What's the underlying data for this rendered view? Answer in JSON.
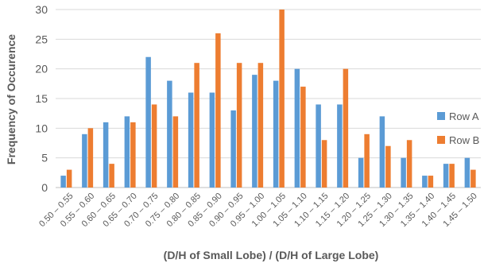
{
  "chart_data": {
    "type": "bar",
    "xlabel": "(D/H of Small Lobe) / (D/H of Large Lobe)",
    "ylabel": "Frequency of Occurence",
    "ylim": [
      0,
      30
    ],
    "yticks": [
      0,
      5,
      10,
      15,
      20,
      25,
      30
    ],
    "grid": true,
    "legend_position": "right",
    "categories": [
      "0.50 – 0.55",
      "0.55 – 0.60",
      "0.60 – 0.65",
      "0.65 – 0.70",
      "0.70 – 0.75",
      "0.75 – 0.80",
      "0.80 – 0.85",
      "0.85 – 0.90",
      "0.90 – 0.95",
      "0.95 – 1.00",
      "1.00 – 1.05",
      "1.05 – 1.10",
      "1.10 – 1.15",
      "1.15 – 1.20",
      "1.20 – 1.25",
      "1.25 – 1.30",
      "1.30 – 1.35",
      "1.35 – 1.40",
      "1.40 – 1.45",
      "1.45 – 1.50"
    ],
    "series": [
      {
        "name": "Row A",
        "color": "#5b9bd5",
        "values": [
          2,
          9,
          11,
          12,
          22,
          18,
          16,
          16,
          13,
          19,
          18,
          20,
          14,
          14,
          5,
          12,
          5,
          2,
          4,
          5
        ]
      },
      {
        "name": "Row B",
        "color": "#ed7d31",
        "values": [
          3,
          10,
          4,
          11,
          14,
          12,
          21,
          26,
          21,
          21,
          30,
          17,
          8,
          20,
          9,
          7,
          8,
          2,
          4,
          3
        ]
      }
    ]
  }
}
